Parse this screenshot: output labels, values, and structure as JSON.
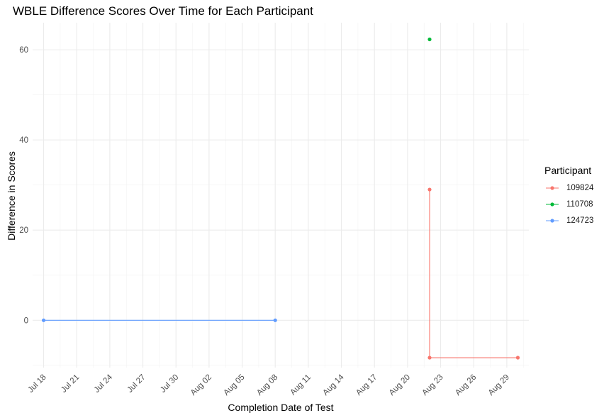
{
  "chart_data": {
    "type": "line",
    "title": "WBLE Difference Scores Over Time for Each Participant",
    "xlabel": "Completion Date of Test",
    "ylabel": "Difference in Scores",
    "x_ticks": [
      "Jul 18",
      "Jul 21",
      "Jul 24",
      "Jul 27",
      "Jul 30",
      "Aug 02",
      "Aug 05",
      "Aug 08",
      "Aug 11",
      "Aug 14",
      "Aug 17",
      "Aug 20",
      "Aug 23",
      "Aug 26",
      "Aug 29"
    ],
    "x_tick_dates": [
      "2024-07-18",
      "2024-07-21",
      "2024-07-24",
      "2024-07-27",
      "2024-07-30",
      "2024-08-02",
      "2024-08-05",
      "2024-08-08",
      "2024-08-11",
      "2024-08-14",
      "2024-08-17",
      "2024-08-20",
      "2024-08-23",
      "2024-08-26",
      "2024-08-29"
    ],
    "xlim": [
      "2024-07-17",
      "2024-08-31"
    ],
    "y_ticks": [
      0,
      20,
      40,
      60
    ],
    "ylim": [
      -10.5,
      66
    ],
    "grid": true,
    "legend": {
      "title": "Participant",
      "position": "right"
    },
    "series": [
      {
        "name": "109824",
        "color": "#F8766D",
        "x": [
          "2024-08-22",
          "2024-08-22",
          "2024-08-30"
        ],
        "y": [
          29,
          -8.3,
          -8.3
        ]
      },
      {
        "name": "110708",
        "color": "#00BA38",
        "x": [
          "2024-08-22"
        ],
        "y": [
          62.3
        ]
      },
      {
        "name": "124723",
        "color": "#619CFF",
        "x": [
          "2024-07-18",
          "2024-08-08"
        ],
        "y": [
          0,
          0
        ]
      }
    ]
  }
}
